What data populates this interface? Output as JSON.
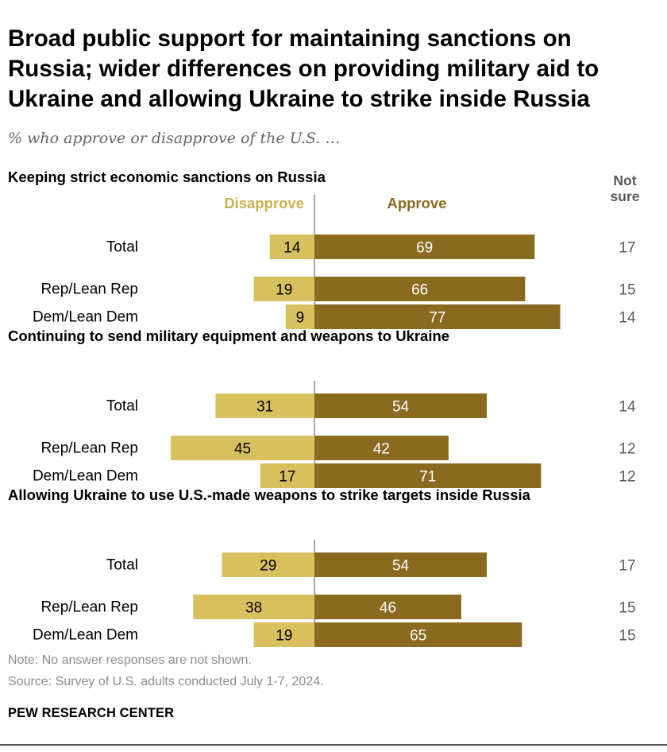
{
  "title": "Broad public support for maintaining sanctions on Russia; wider differences on providing military aid to Ukraine and allowing Ukraine to strike inside Russia",
  "subtitle": "% who approve or disapprove of the U.S. …",
  "headers": {
    "disapprove": "Disapprove",
    "approve": "Approve",
    "not_sure_line1": "Not",
    "not_sure_line2": "sure"
  },
  "colors": {
    "approve": "#8a6a1f",
    "disapprove": "#d8c05e",
    "disapprove_text": "#cbb04e",
    "axis": "#555555",
    "muted": "#595959"
  },
  "chart_data": {
    "type": "bar",
    "orientation": "horizontal-diverging",
    "categories": [
      "Total",
      "Rep/Lean Rep",
      "Dem/Lean Dem"
    ],
    "panels": [
      {
        "title": "Keeping strict economic sanctions on Russia",
        "rows": [
          {
            "label": "Total",
            "disapprove": 14,
            "approve": 69,
            "not_sure": 17
          },
          {
            "label": "Rep/Lean Rep",
            "disapprove": 19,
            "approve": 66,
            "not_sure": 15
          },
          {
            "label": "Dem/Lean Dem",
            "disapprove": 9,
            "approve": 77,
            "not_sure": 14
          }
        ]
      },
      {
        "title": "Continuing to send military equipment and weapons to Ukraine",
        "rows": [
          {
            "label": "Total",
            "disapprove": 31,
            "approve": 54,
            "not_sure": 14
          },
          {
            "label": "Rep/Lean Rep",
            "disapprove": 45,
            "approve": 42,
            "not_sure": 12
          },
          {
            "label": "Dem/Lean Dem",
            "disapprove": 17,
            "approve": 71,
            "not_sure": 12
          }
        ]
      },
      {
        "title": "Allowing Ukraine to use U.S.-made weapons to strike targets inside Russia",
        "rows": [
          {
            "label": "Total",
            "disapprove": 29,
            "approve": 54,
            "not_sure": 17
          },
          {
            "label": "Rep/Lean Rep",
            "disapprove": 38,
            "approve": 46,
            "not_sure": 15
          },
          {
            "label": "Dem/Lean Dem",
            "disapprove": 19,
            "approve": 65,
            "not_sure": 15
          }
        ]
      }
    ]
  },
  "note": "Note: No answer responses are not shown.",
  "source": "Source: Survey of U.S. adults conducted July 1-7, 2024.",
  "brand": "PEW RESEARCH CENTER"
}
